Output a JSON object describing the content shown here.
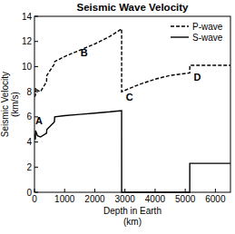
{
  "chart_data": {
    "type": "line",
    "title": "Seismic Wave Velocity",
    "xlabel": [
      "Depth in Earth",
      "(km)"
    ],
    "ylabel": [
      "Seismic Velocity",
      "(km/s)"
    ],
    "x": [
      0,
      30,
      35,
      100,
      200,
      400,
      410,
      660,
      670,
      1000,
      1500,
      2000,
      2500,
      2890,
      2891,
      3500,
      4000,
      4500,
      5150,
      5151,
      6500
    ],
    "series": [
      {
        "name": "P-wave",
        "color": "#000000",
        "line_style": "dashed",
        "values": [
          7.6,
          7.7,
          8.3,
          8.1,
          8.0,
          8.8,
          9.3,
          10.2,
          10.4,
          10.8,
          11.3,
          11.8,
          12.4,
          13.0,
          8.0,
          8.6,
          9.0,
          9.3,
          9.5,
          10.1,
          10.1
        ]
      },
      {
        "name": "S-wave",
        "color": "#000000",
        "line_style": "solid",
        "values": [
          4.6,
          4.2,
          4.9,
          4.5,
          4.4,
          4.7,
          5.0,
          5.6,
          6.0,
          6.1,
          6.2,
          6.3,
          6.4,
          6.5,
          0,
          0,
          0,
          0,
          0,
          2.3,
          2.3
        ]
      }
    ],
    "xlim": [
      0,
      6500
    ],
    "xticks": [
      0,
      1000,
      2000,
      3000,
      4000,
      5000,
      6000
    ],
    "ylim": [
      0,
      14
    ],
    "yticks": [
      0,
      2,
      4,
      6,
      8,
      10,
      12,
      14
    ],
    "grid": false,
    "legend": "upper right",
    "annotations": [
      {
        "text": "A",
        "x": 150,
        "y": 5.4
      },
      {
        "text": "B",
        "x": 1650,
        "y": 10.8
      },
      {
        "text": "C",
        "x": 3150,
        "y": 7.3
      },
      {
        "text": "D",
        "x": 5400,
        "y": 8.9
      }
    ]
  }
}
